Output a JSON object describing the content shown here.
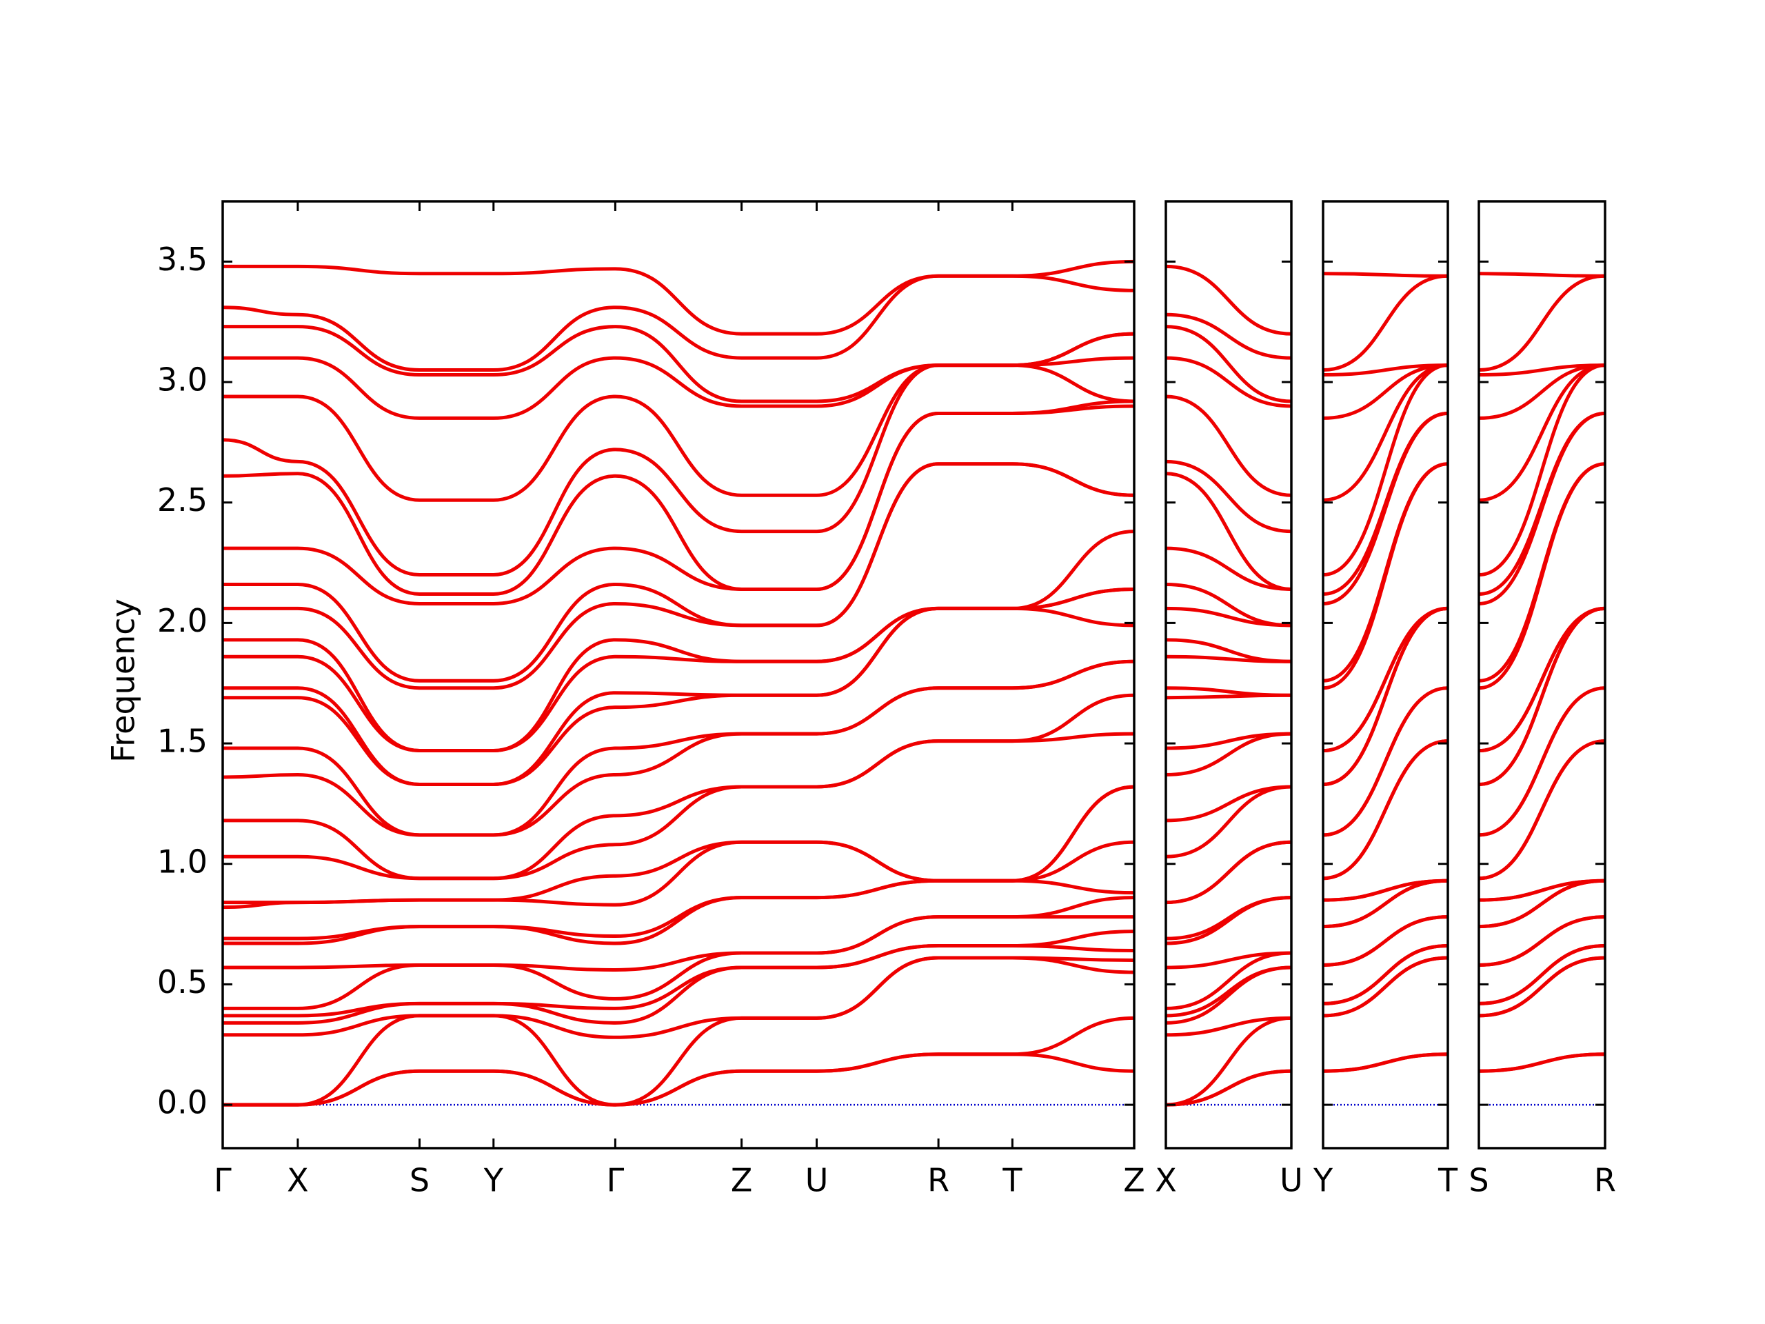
{
  "chart_data": [
    {
      "type": "line",
      "ylabel": "Frequency",
      "color": "#ee0000",
      "baseline": 0,
      "baseline_color": "#0000cc",
      "xlim": [
        0,
        8.01
      ],
      "ylim": [
        -0.18,
        3.75
      ],
      "yticks": [
        {
          "value": 0,
          "label": "0.0"
        },
        0.5,
        {
          "value": 1,
          "label": "1.0"
        },
        1.5,
        {
          "value": 2,
          "label": "2.0"
        },
        2.5,
        {
          "value": 3,
          "label": "3.0"
        },
        3.5
      ],
      "xticks": [
        {
          "value": 0,
          "label": "Γ"
        },
        {
          "value": 0.66,
          "label": "X"
        },
        {
          "value": 1.73,
          "label": "S"
        },
        {
          "value": 2.38,
          "label": "Y"
        },
        {
          "value": 3.45,
          "label": "Γ"
        },
        {
          "value": 4.56,
          "label": "Z"
        },
        {
          "value": 5.22,
          "label": "U"
        },
        {
          "value": 6.29,
          "label": "R"
        },
        {
          "value": 6.94,
          "label": "T"
        },
        {
          "value": 8.01,
          "label": "Z"
        }
      ],
      "x": [
        0,
        0.66,
        1.73,
        2.38,
        3.45,
        4.56,
        5.22,
        6.29,
        6.94,
        8.01
      ],
      "series": [
        {
          "values": [
            0,
            0,
            0.14,
            0.14,
            0,
            0.14,
            0.14,
            0.21,
            0.21,
            0.14
          ]
        },
        {
          "values": [
            0,
            0,
            0.14,
            0.14,
            0,
            0.14,
            0.14,
            0.21,
            0.21,
            0.36
          ]
        },
        {
          "values": [
            0,
            0,
            0.37,
            0.37,
            0,
            0.36,
            0.36,
            0.61,
            0.61,
            0.55
          ]
        },
        {
          "values": [
            0.29,
            0.29,
            0.37,
            0.37,
            0.28,
            0.36,
            0.36,
            0.61,
            0.61,
            0.6
          ]
        },
        {
          "values": [
            0.34,
            0.34,
            0.42,
            0.42,
            0.34,
            0.57,
            0.57,
            0.66,
            0.66,
            0.64
          ]
        },
        {
          "values": [
            0.37,
            0.37,
            0.42,
            0.42,
            0.4,
            0.57,
            0.57,
            0.66,
            0.66,
            0.72
          ]
        },
        {
          "values": [
            0.4,
            0.4,
            0.58,
            0.58,
            0.44,
            0.63,
            0.63,
            0.78,
            0.78,
            0.78
          ]
        },
        {
          "values": [
            0.57,
            0.57,
            0.58,
            0.58,
            0.56,
            0.63,
            0.63,
            0.78,
            0.78,
            0.86
          ]
        },
        {
          "values": [
            0.67,
            0.67,
            0.74,
            0.74,
            0.67,
            0.86,
            0.86,
            0.93,
            0.93,
            0.88
          ]
        },
        {
          "values": [
            0.69,
            0.69,
            0.74,
            0.74,
            0.7,
            0.86,
            0.86,
            0.93,
            0.93,
            1.09
          ]
        },
        {
          "values": [
            0.82,
            0.84,
            0.85,
            0.85,
            0.83,
            1.09,
            1.09,
            0.93,
            0.93,
            1.32
          ]
        },
        {
          "values": [
            0.84,
            0.84,
            0.85,
            0.85,
            0.95,
            1.09,
            1.09,
            0.93,
            0.93,
            1.32
          ]
        },
        {
          "values": [
            1.03,
            1.03,
            0.94,
            0.94,
            1.08,
            1.32,
            1.32,
            1.51,
            1.51,
            1.54
          ]
        },
        {
          "values": [
            1.18,
            1.18,
            0.94,
            0.94,
            1.2,
            1.32,
            1.32,
            1.51,
            1.51,
            1.7
          ]
        },
        {
          "values": [
            1.36,
            1.37,
            1.12,
            1.12,
            1.37,
            1.54,
            1.54,
            1.73,
            1.73,
            1.84
          ]
        },
        {
          "values": [
            1.48,
            1.48,
            1.12,
            1.12,
            1.48,
            1.54,
            1.54,
            1.73,
            1.73,
            1.84
          ]
        },
        {
          "values": [
            1.69,
            1.69,
            1.33,
            1.33,
            1.65,
            1.7,
            1.7,
            2.06,
            2.06,
            1.99
          ]
        },
        {
          "values": [
            1.73,
            1.73,
            1.33,
            1.33,
            1.71,
            1.7,
            1.7,
            2.06,
            2.06,
            2.14
          ]
        },
        {
          "values": [
            1.86,
            1.86,
            1.47,
            1.47,
            1.86,
            1.84,
            1.84,
            2.06,
            2.06,
            2.14
          ]
        },
        {
          "values": [
            1.93,
            1.93,
            1.47,
            1.47,
            1.93,
            1.84,
            1.84,
            2.06,
            2.06,
            2.38
          ]
        },
        {
          "values": [
            2.06,
            2.06,
            1.73,
            1.73,
            2.08,
            1.99,
            1.99,
            2.66,
            2.66,
            2.53
          ]
        },
        {
          "values": [
            2.16,
            2.16,
            1.76,
            1.76,
            2.16,
            1.99,
            1.99,
            2.66,
            2.66,
            2.53
          ]
        },
        {
          "values": [
            2.31,
            2.31,
            2.08,
            2.08,
            2.31,
            2.14,
            2.14,
            2.87,
            2.87,
            2.9
          ]
        },
        {
          "values": [
            2.61,
            2.62,
            2.12,
            2.12,
            2.61,
            2.14,
            2.14,
            2.87,
            2.87,
            2.92
          ]
        },
        {
          "values": [
            2.76,
            2.67,
            2.2,
            2.2,
            2.72,
            2.38,
            2.38,
            3.07,
            3.07,
            2.92
          ]
        },
        {
          "values": [
            2.94,
            2.94,
            2.51,
            2.51,
            2.94,
            2.53,
            2.53,
            3.07,
            3.07,
            3.1
          ]
        },
        {
          "values": [
            3.1,
            3.1,
            2.85,
            2.85,
            3.1,
            2.9,
            2.9,
            3.07,
            3.07,
            3.2
          ]
        },
        {
          "values": [
            3.23,
            3.23,
            3.03,
            3.03,
            3.23,
            2.92,
            2.92,
            3.07,
            3.07,
            3.2
          ]
        },
        {
          "values": [
            3.31,
            3.28,
            3.05,
            3.05,
            3.31,
            3.1,
            3.1,
            3.44,
            3.44,
            3.38
          ]
        },
        {
          "values": [
            3.48,
            3.48,
            3.45,
            3.45,
            3.47,
            3.2,
            3.2,
            3.44,
            3.44,
            3.5
          ]
        }
      ]
    },
    {
      "type": "line",
      "color": "#ee0000",
      "baseline": 0,
      "baseline_color": "#0000cc",
      "xlim": [
        0,
        1.1
      ],
      "ylim": [
        -0.18,
        3.75
      ],
      "xticks": [
        {
          "value": 0,
          "label": "X"
        },
        {
          "value": 1.1,
          "label": "U"
        }
      ],
      "x": [
        0,
        1.1
      ],
      "series": [
        {
          "values": [
            0,
            0.14
          ]
        },
        {
          "values": [
            0,
            0.14
          ]
        },
        {
          "values": [
            0,
            0.36
          ]
        },
        {
          "values": [
            0.29,
            0.36
          ]
        },
        {
          "values": [
            0.34,
            0.57
          ]
        },
        {
          "values": [
            0.37,
            0.57
          ]
        },
        {
          "values": [
            0.4,
            0.63
          ]
        },
        {
          "values": [
            0.57,
            0.63
          ]
        },
        {
          "values": [
            0.67,
            0.86
          ]
        },
        {
          "values": [
            0.69,
            0.86
          ]
        },
        {
          "values": [
            0.84,
            1.09
          ]
        },
        {
          "values": [
            0.84,
            1.09
          ]
        },
        {
          "values": [
            1.03,
            1.32
          ]
        },
        {
          "values": [
            1.18,
            1.32
          ]
        },
        {
          "values": [
            1.37,
            1.54
          ]
        },
        {
          "values": [
            1.48,
            1.54
          ]
        },
        {
          "values": [
            1.69,
            1.7
          ]
        },
        {
          "values": [
            1.73,
            1.7
          ]
        },
        {
          "values": [
            1.86,
            1.84
          ]
        },
        {
          "values": [
            1.93,
            1.84
          ]
        },
        {
          "values": [
            2.06,
            1.99
          ]
        },
        {
          "values": [
            2.16,
            1.99
          ]
        },
        {
          "values": [
            2.31,
            2.14
          ]
        },
        {
          "values": [
            2.62,
            2.14
          ]
        },
        {
          "values": [
            2.67,
            2.38
          ]
        },
        {
          "values": [
            2.94,
            2.53
          ]
        },
        {
          "values": [
            3.1,
            2.9
          ]
        },
        {
          "values": [
            3.23,
            2.92
          ]
        },
        {
          "values": [
            3.28,
            3.1
          ]
        },
        {
          "values": [
            3.48,
            3.2
          ]
        }
      ]
    },
    {
      "type": "line",
      "color": "#ee0000",
      "baseline": 0,
      "baseline_color": "#0000cc",
      "xlim": [
        0,
        1.1
      ],
      "ylim": [
        -0.18,
        3.75
      ],
      "xticks": [
        {
          "value": 0,
          "label": "Y"
        },
        {
          "value": 1.1,
          "label": "T"
        }
      ],
      "x": [
        0,
        1.1
      ],
      "series": [
        {
          "values": [
            0.14,
            0.21
          ]
        },
        {
          "values": [
            0.14,
            0.21
          ]
        },
        {
          "values": [
            0.37,
            0.61
          ]
        },
        {
          "values": [
            0.37,
            0.61
          ]
        },
        {
          "values": [
            0.42,
            0.66
          ]
        },
        {
          "values": [
            0.42,
            0.66
          ]
        },
        {
          "values": [
            0.58,
            0.78
          ]
        },
        {
          "values": [
            0.58,
            0.78
          ]
        },
        {
          "values": [
            0.74,
            0.93
          ]
        },
        {
          "values": [
            0.74,
            0.93
          ]
        },
        {
          "values": [
            0.85,
            0.93
          ]
        },
        {
          "values": [
            0.85,
            0.93
          ]
        },
        {
          "values": [
            0.94,
            1.51
          ]
        },
        {
          "values": [
            0.94,
            1.51
          ]
        },
        {
          "values": [
            1.12,
            1.73
          ]
        },
        {
          "values": [
            1.12,
            1.73
          ]
        },
        {
          "values": [
            1.33,
            2.06
          ]
        },
        {
          "values": [
            1.33,
            2.06
          ]
        },
        {
          "values": [
            1.47,
            2.06
          ]
        },
        {
          "values": [
            1.47,
            2.06
          ]
        },
        {
          "values": [
            1.73,
            2.66
          ]
        },
        {
          "values": [
            1.76,
            2.66
          ]
        },
        {
          "values": [
            2.08,
            2.87
          ]
        },
        {
          "values": [
            2.12,
            2.87
          ]
        },
        {
          "values": [
            2.2,
            3.07
          ]
        },
        {
          "values": [
            2.51,
            3.07
          ]
        },
        {
          "values": [
            2.85,
            3.07
          ]
        },
        {
          "values": [
            3.03,
            3.07
          ]
        },
        {
          "values": [
            3.05,
            3.44
          ]
        },
        {
          "values": [
            3.45,
            3.44
          ]
        }
      ]
    },
    {
      "type": "line",
      "color": "#ee0000",
      "baseline": 0,
      "baseline_color": "#0000cc",
      "xlim": [
        0,
        1.1
      ],
      "ylim": [
        -0.18,
        3.75
      ],
      "xticks": [
        {
          "value": 0,
          "label": "S"
        },
        {
          "value": 1.1,
          "label": "R"
        }
      ],
      "x": [
        0,
        1.1
      ],
      "series": [
        {
          "values": [
            0.14,
            0.21
          ]
        },
        {
          "values": [
            0.14,
            0.21
          ]
        },
        {
          "values": [
            0.37,
            0.61
          ]
        },
        {
          "values": [
            0.37,
            0.61
          ]
        },
        {
          "values": [
            0.42,
            0.66
          ]
        },
        {
          "values": [
            0.42,
            0.66
          ]
        },
        {
          "values": [
            0.58,
            0.78
          ]
        },
        {
          "values": [
            0.58,
            0.78
          ]
        },
        {
          "values": [
            0.74,
            0.93
          ]
        },
        {
          "values": [
            0.74,
            0.93
          ]
        },
        {
          "values": [
            0.85,
            0.93
          ]
        },
        {
          "values": [
            0.85,
            0.93
          ]
        },
        {
          "values": [
            0.94,
            1.51
          ]
        },
        {
          "values": [
            0.94,
            1.51
          ]
        },
        {
          "values": [
            1.12,
            1.73
          ]
        },
        {
          "values": [
            1.12,
            1.73
          ]
        },
        {
          "values": [
            1.33,
            2.06
          ]
        },
        {
          "values": [
            1.33,
            2.06
          ]
        },
        {
          "values": [
            1.47,
            2.06
          ]
        },
        {
          "values": [
            1.47,
            2.06
          ]
        },
        {
          "values": [
            1.73,
            2.66
          ]
        },
        {
          "values": [
            1.76,
            2.66
          ]
        },
        {
          "values": [
            2.08,
            2.87
          ]
        },
        {
          "values": [
            2.12,
            2.87
          ]
        },
        {
          "values": [
            2.2,
            3.07
          ]
        },
        {
          "values": [
            2.51,
            3.07
          ]
        },
        {
          "values": [
            2.85,
            3.07
          ]
        },
        {
          "values": [
            3.03,
            3.07
          ]
        },
        {
          "values": [
            3.05,
            3.44
          ]
        },
        {
          "values": [
            3.45,
            3.44
          ]
        }
      ]
    }
  ]
}
